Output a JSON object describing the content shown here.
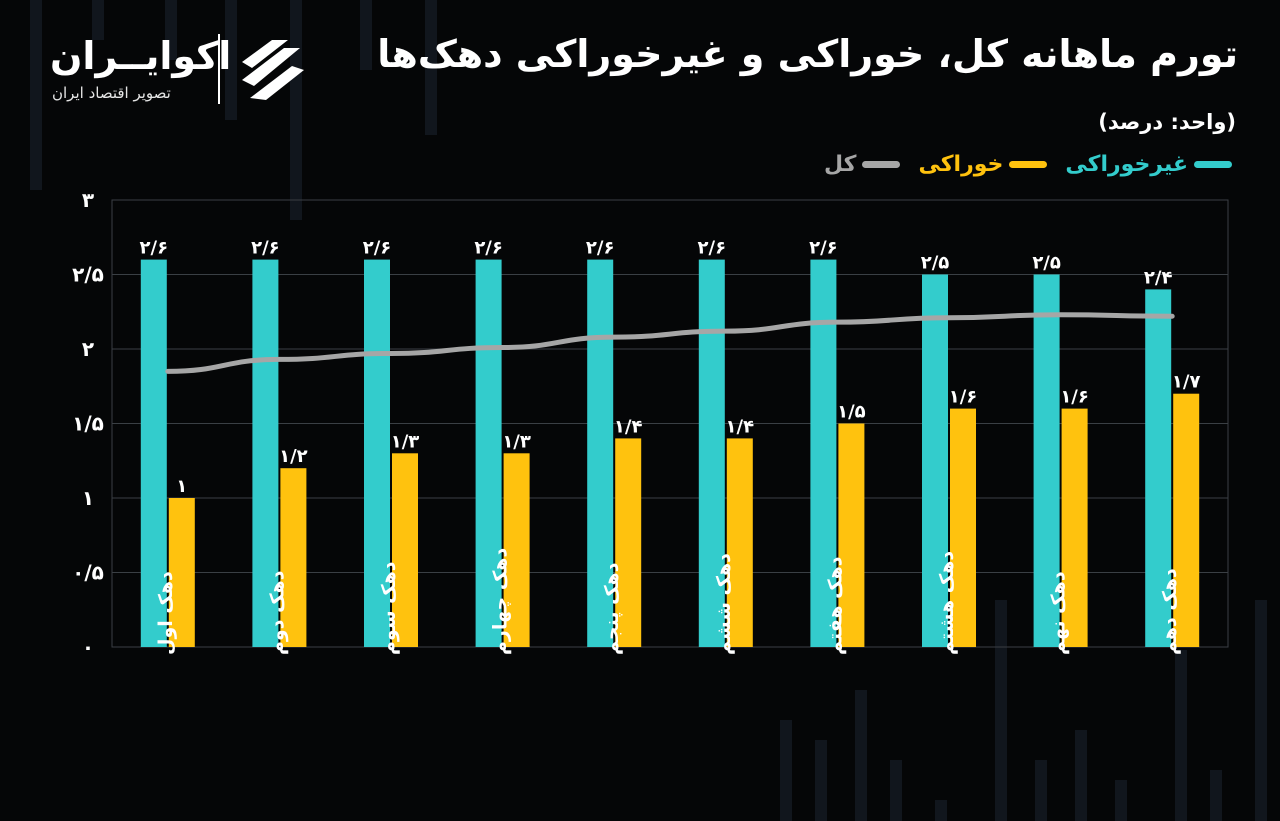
{
  "header": {
    "title": "تورم ماهانه کل، خوراکی و غیرخوراکی دهک‌ها",
    "unit": "(واحد: درصد)"
  },
  "logo": {
    "name": "اکوایــران",
    "subtitle": "تصویر اقتصاد ایران",
    "icon": "ecoiran-logo-mark"
  },
  "legend": [
    {
      "label": "غیرخوراکی",
      "color": "#33CCCC"
    },
    {
      "label": "خوراکی",
      "color": "#FFC20E"
    },
    {
      "label": "کل",
      "color": "#A6A6A6"
    }
  ],
  "chart_data": {
    "type": "bar",
    "title": "تورم ماهانه کل، خوراکی و غیرخوراکی دهک‌ها",
    "ylabel": "(واحد: درصد)",
    "ylim": [
      0,
      3
    ],
    "yticks": [
      0,
      0.5,
      1,
      1.5,
      2,
      2.5,
      3
    ],
    "ytick_labels": [
      "۰",
      "۰/۵",
      "۱",
      "۱/۵",
      "۲",
      "۲/۵",
      "۳"
    ],
    "grid": true,
    "legend_position": "top-right",
    "categories": [
      "دهک اول",
      "دهک دوم",
      "دهک سوم",
      "دهک چهارم",
      "دهک پنجم",
      "دهک ششم",
      "دهک هفتم",
      "دهک هشتم",
      "دهک نهم",
      "دهک دهم"
    ],
    "series": [
      {
        "name": "غیرخوراکی",
        "type": "bar",
        "color": "#33CCCC",
        "values": [
          2.6,
          2.6,
          2.6,
          2.6,
          2.6,
          2.6,
          2.6,
          2.5,
          2.5,
          2.4
        ],
        "labels": [
          "۲/۶",
          "۲/۶",
          "۲/۶",
          "۲/۶",
          "۲/۶",
          "۲/۶",
          "۲/۶",
          "۲/۵",
          "۲/۵",
          "۲/۴"
        ]
      },
      {
        "name": "خوراکی",
        "type": "bar",
        "color": "#FFC20E",
        "values": [
          1.0,
          1.2,
          1.3,
          1.3,
          1.4,
          1.4,
          1.5,
          1.6,
          1.6,
          1.7
        ],
        "labels": [
          "۱",
          "۱/۲",
          "۱/۳",
          "۱/۳",
          "۱/۴",
          "۱/۴",
          "۱/۵",
          "۱/۶",
          "۱/۶",
          "۱/۷"
        ]
      },
      {
        "name": "کل",
        "type": "line",
        "color": "#A6A6A6",
        "values": [
          1.85,
          1.93,
          1.97,
          2.01,
          2.08,
          2.12,
          2.18,
          2.21,
          2.23,
          2.22
        ]
      }
    ]
  }
}
